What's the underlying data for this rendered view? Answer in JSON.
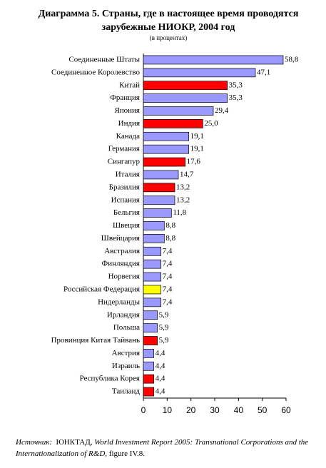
{
  "chart_data": {
    "type": "hbar",
    "title": [
      "Диаграмма 5.  Страны, где в настоящее время проводятся",
      "зарубежные НИОКР, 2004 год"
    ],
    "subtitle": "(в процентах)",
    "categories": [
      "Соединенные Штаты",
      "Соединенное Королевство",
      "Китай",
      "Франция",
      "Япония",
      "Индия",
      "Канада",
      "Германия",
      "Сингапур",
      "Италия",
      "Бразилия",
      "Испания",
      "Бельгия",
      "Швеция",
      "Швейцария",
      "Австралия",
      "Финляндия",
      "Норвегия",
      "Российская Федерация",
      "Нидерланды",
      "Ирландия",
      "Польша",
      "Провинция Китая Тайвань",
      "Австрия",
      "Израиль",
      "Республика Корея",
      "Таиланд"
    ],
    "values": [
      58.8,
      47.1,
      35.3,
      35.3,
      29.4,
      25.0,
      19.1,
      19.1,
      17.6,
      14.7,
      13.2,
      13.2,
      11.8,
      8.8,
      8.8,
      7.4,
      7.4,
      7.4,
      7.4,
      7.4,
      5.9,
      5.9,
      5.9,
      4.4,
      4.4,
      4.4,
      4.4
    ],
    "value_labels": [
      "58,8",
      "47,1",
      "35,3",
      "35,3",
      "29,4",
      "25,0",
      "19,1",
      "19,1",
      "17,6",
      "14,7",
      "13,2",
      "13,2",
      "11,8",
      "8,8",
      "8,8",
      "7,4",
      "7,4",
      "7,4",
      "7,4",
      "7,4",
      "5,9",
      "5,9",
      "5,9",
      "4,4",
      "4,4",
      "4,4",
      "4,4"
    ],
    "colors": [
      "#9999ff",
      "#9999ff",
      "#ff0000",
      "#9999ff",
      "#9999ff",
      "#ff0000",
      "#9999ff",
      "#9999ff",
      "#ff0000",
      "#9999ff",
      "#ff0000",
      "#9999ff",
      "#9999ff",
      "#9999ff",
      "#9999ff",
      "#9999ff",
      "#9999ff",
      "#9999ff",
      "#ffff00",
      "#9999ff",
      "#9999ff",
      "#9999ff",
      "#ff0000",
      "#9999ff",
      "#9999ff",
      "#ff0000",
      "#ff0000"
    ],
    "xlim": [
      0,
      60
    ],
    "xticks": [
      0,
      10,
      20,
      30,
      40,
      50,
      60
    ]
  },
  "source": {
    "label": "Источник:",
    "publisher": "ЮНКТАД,",
    "work": "World Investment Report 2005: Transnational Corporations and the Internationalization of R&D",
    "reference": ", figure IV.8."
  }
}
